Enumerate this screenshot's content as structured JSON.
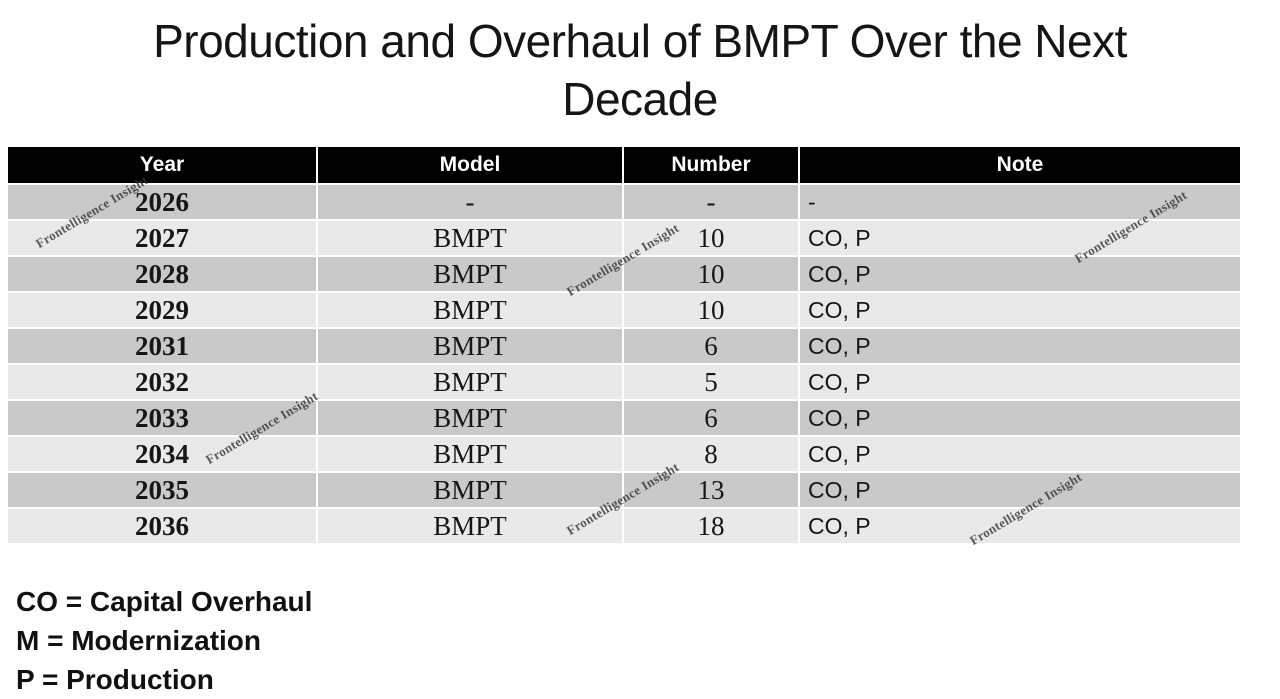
{
  "title": {
    "text": "Production and Overhaul of BMPT Over the Next Decade",
    "lines": [
      "Production and Overhaul of BMPT Over the Next",
      "Decade"
    ]
  },
  "watermark": {
    "text": "Frontelligence Insight"
  },
  "legend": {
    "items": [
      "CO = Capital Overhaul",
      "M = Modernization",
      "P = Production"
    ]
  },
  "chart_data": {
    "type": "table",
    "title": "Production and Overhaul of BMPT Over the Next Decade",
    "columns": [
      "Year",
      "Model",
      "Number",
      "Note"
    ],
    "rows": [
      [
        "2026",
        "-",
        "-",
        "-"
      ],
      [
        "2027",
        "BMPT",
        "10",
        "CO, P"
      ],
      [
        "2028",
        "BMPT",
        "10",
        "CO, P"
      ],
      [
        "2029",
        "BMPT",
        "10",
        "CO, P"
      ],
      [
        "2031",
        "BMPT",
        "6",
        "CO, P"
      ],
      [
        "2032",
        "BMPT",
        "5",
        "CO, P"
      ],
      [
        "2033",
        "BMPT",
        "6",
        "CO, P"
      ],
      [
        "2034",
        "BMPT",
        "8",
        "CO, P"
      ],
      [
        "2035",
        "BMPT",
        "13",
        "CO, P"
      ],
      [
        "2036",
        "BMPT",
        "18",
        "CO, P"
      ]
    ],
    "legend": [
      "CO = Capital Overhaul",
      "M = Modernization",
      "P = Production"
    ],
    "watermark": "Frontelligence Insight"
  },
  "colors": {
    "header_bg": "#000000",
    "header_fg": "#ffffff",
    "row_dark": "#c9c9c9",
    "row_light": "#e9e9e9",
    "watermark": "#333333",
    "text": "#161616"
  }
}
